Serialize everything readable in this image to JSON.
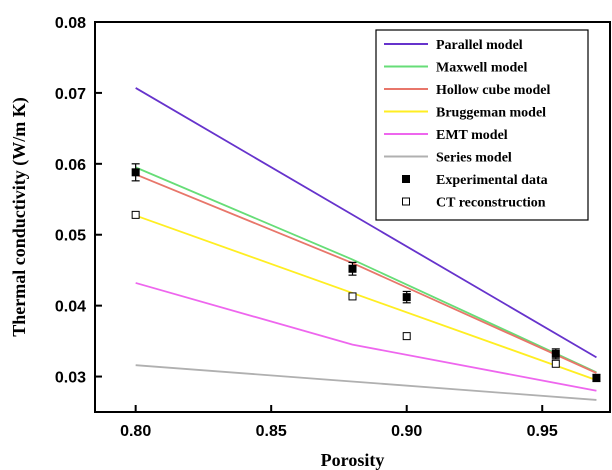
{
  "chart_data": {
    "type": "line",
    "xlabel": "Porosity",
    "ylabel": "Thermal conductivity (W/m K)",
    "xlim": [
      0.785,
      0.975
    ],
    "ylim": [
      0.025,
      0.08
    ],
    "xticks": [
      0.8,
      0.85,
      0.9,
      0.95
    ],
    "xtick_labels": [
      "0.80",
      "0.85",
      "0.90",
      "0.95"
    ],
    "yticks": [
      0.03,
      0.04,
      0.05,
      0.06,
      0.07,
      0.08
    ],
    "ytick_labels": [
      "0.03",
      "0.04",
      "0.05",
      "0.06",
      "0.07",
      "0.08"
    ],
    "legend_position": "top-right",
    "grid": false,
    "series": [
      {
        "name": "Parallel model",
        "color": "#6633cc",
        "kind": "line",
        "x": [
          0.8,
          0.97
        ],
        "y": [
          0.0707,
          0.0327
        ]
      },
      {
        "name": "Maxwell model",
        "color": "#66dd77",
        "kind": "line",
        "x": [
          0.8,
          0.88,
          0.97
        ],
        "y": [
          0.0595,
          0.0465,
          0.0306
        ]
      },
      {
        "name": "Hollow cube model",
        "color": "#e8766a",
        "kind": "line",
        "x": [
          0.8,
          0.88,
          0.97
        ],
        "y": [
          0.0585,
          0.046,
          0.0305
        ]
      },
      {
        "name": "Bruggeman model",
        "color": "#ffee22",
        "kind": "line",
        "x": [
          0.8,
          0.97
        ],
        "y": [
          0.0527,
          0.0295
        ]
      },
      {
        "name": "EMT model",
        "color": "#ee66ee",
        "kind": "line",
        "x": [
          0.8,
          0.88,
          0.97
        ],
        "y": [
          0.0432,
          0.0345,
          0.028
        ]
      },
      {
        "name": "Series model",
        "color": "#b0b0b0",
        "kind": "line",
        "x": [
          0.8,
          0.97
        ],
        "y": [
          0.0316,
          0.0267
        ]
      },
      {
        "name": "Experimental data",
        "color": "#000000",
        "kind": "filled-square",
        "x": [
          0.8,
          0.88,
          0.9,
          0.955,
          0.97
        ],
        "y": [
          0.0588,
          0.0452,
          0.0412,
          0.0332,
          0.0298
        ],
        "err": [
          0.0012,
          0.0009,
          0.0008,
          0.0007,
          0.0005
        ]
      },
      {
        "name": "CT reconstruction",
        "color": "#000000",
        "kind": "open-square",
        "x": [
          0.8,
          0.88,
          0.9,
          0.955
        ],
        "y": [
          0.0528,
          0.0413,
          0.0357,
          0.0318
        ]
      }
    ]
  }
}
